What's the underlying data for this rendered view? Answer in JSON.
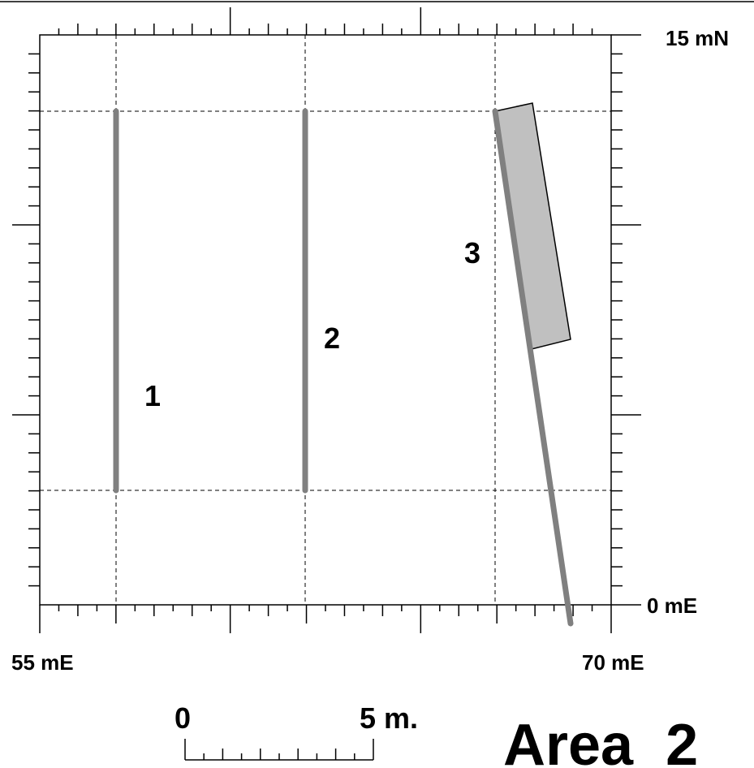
{
  "axis_labels": {
    "north": "15 mN",
    "origin": "0 mE",
    "west": "55 mE",
    "east": "70 mE"
  },
  "scale_bar": {
    "start": "0",
    "end": "5 m."
  },
  "trenches": [
    {
      "label": "1"
    },
    {
      "label": "2"
    },
    {
      "label": "3"
    }
  ],
  "title": "Area  2"
}
